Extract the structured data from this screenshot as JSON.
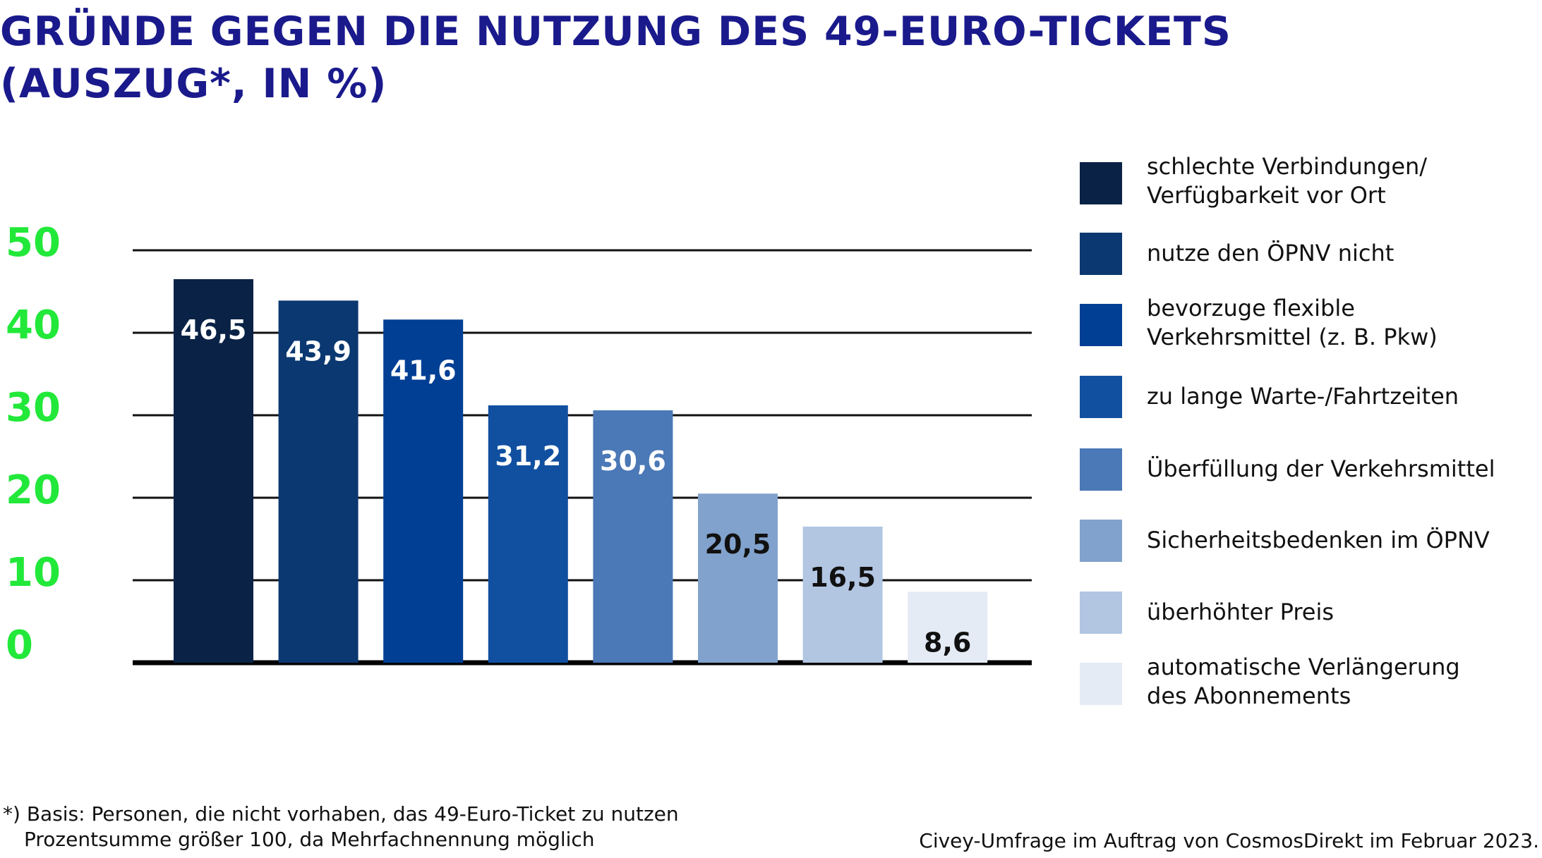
{
  "title": {
    "line1": "GRÜNDE GEGEN DIE NUTZUNG DES 49-EURO-TICKETS",
    "line2": "(AUSZUG*, IN %)"
  },
  "chart_data": {
    "type": "bar",
    "ylim": [
      0,
      50
    ],
    "yticks": [
      "0",
      "10",
      "20",
      "30",
      "40",
      "50"
    ],
    "grid": true,
    "legend_position": "right",
    "categories": [
      "schlechte Verbindungen/\nVerfügbarkeit vor Ort",
      "nutze den ÖPNV nicht",
      "bevorzuge flexible\nVerkehrsmittel (z. B. Pkw)",
      "zu lange Warte-/Fahrtzeiten",
      "Überfüllung der Verkehrsmittel",
      "Sicherheitsbedenken im ÖPNV",
      "überhöhter Preis",
      "automatische Verlängerung\ndes Abonnements"
    ],
    "values": [
      46.5,
      43.9,
      41.6,
      31.2,
      30.6,
      20.5,
      16.5,
      8.6
    ],
    "value_labels": [
      "46,5",
      "43,9",
      "41,6",
      "31,2",
      "30,6",
      "20,5",
      "16,5",
      "8,6"
    ],
    "colors": [
      "#0a2246",
      "#0b3870",
      "#013f95",
      "#1150a0",
      "#4b78b6",
      "#81a2cd",
      "#b2c6e2",
      "#e4ebf5"
    ],
    "label_colors": [
      "#ffffff",
      "#ffffff",
      "#ffffff",
      "#ffffff",
      "#ffffff",
      "#111111",
      "#111111",
      "#111111"
    ]
  },
  "footnote": {
    "line1": "*) Basis: Personen, die nicht vorhaben, das 49-Euro-Ticket zu nutzen",
    "line2": "Prozentsumme größer 100, da Mehrfachnennung möglich"
  },
  "source": "Civey-Umfrage im Auftrag von CosmosDirekt im Februar 2023."
}
